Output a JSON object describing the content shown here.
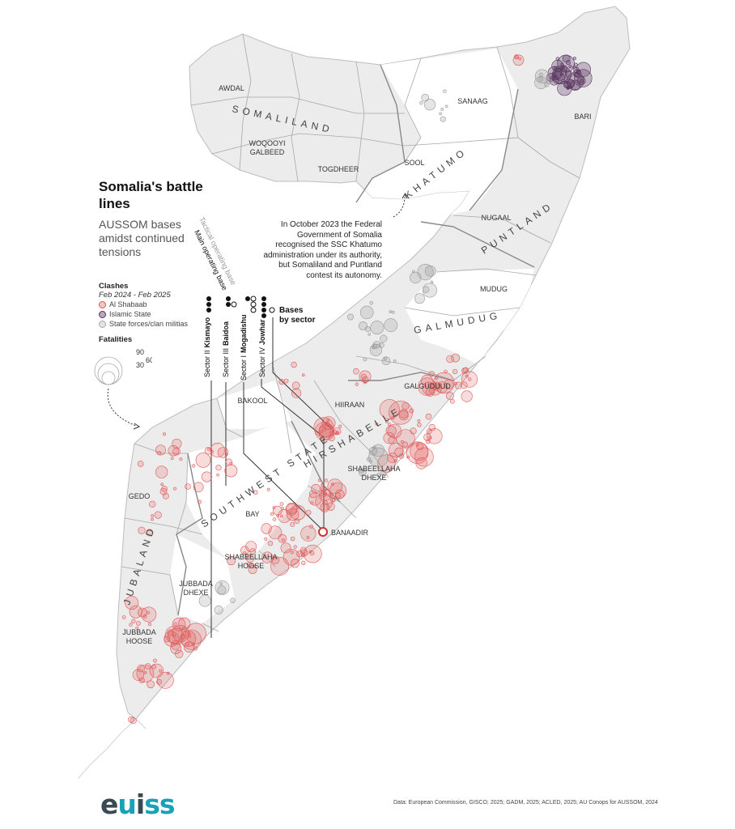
{
  "title": "Somalia's battle lines",
  "subtitle": "AUSSOM bases amidst continued tensions",
  "legend": {
    "clashes_heading": "Clashes",
    "period": "Feb 2024 - Feb 2025",
    "items": [
      {
        "label": "Al Shabaab",
        "color": "#e05a5a"
      },
      {
        "label": "Islamic State",
        "color": "#6b4a73"
      },
      {
        "label": "State forces/clan militias",
        "color": "#aaaaaa"
      }
    ],
    "fatalities_heading": "Fatalities",
    "fatality_values": [
      "90",
      "60",
      "30"
    ]
  },
  "base_types": {
    "tactical": "Tactical operating base",
    "main": "Main operating base",
    "bases_by_sector": "Bases by sector"
  },
  "sectors": [
    {
      "label": "Sector II",
      "city": "Kismayo",
      "main": 3,
      "tactical": 0
    },
    {
      "label": "Sector III",
      "city": "Baidoa",
      "main": 2,
      "tactical": 1
    },
    {
      "label": "Sector I",
      "city": "Mogadishu",
      "main": 1,
      "tactical": 3
    },
    {
      "label": "Sector IV",
      "city": "Jowhar",
      "main": 4,
      "tactical": 1
    }
  ],
  "annotation": "In October 2023 the Federal Government of Somalia recognised the SSC Khatumo administration under its authority, but Somaliland and Puntland contest its autonomy.",
  "states": [
    "SOMALILAND",
    "KHATUMO",
    "PUNTLAND",
    "GALMUDUG",
    "HIRSHABELLE",
    "SOUTHWEST STATE",
    "JUBALAND"
  ],
  "regions": [
    "AWDAL",
    "WOQOOYI GALBEED",
    "TOGDHEER",
    "SOOL",
    "SANAAG",
    "BARI",
    "NUGAAL",
    "MUDUG",
    "GALGUDUUD",
    "HIIRAAN",
    "BAKOOL",
    "SHABEELLAHA DHEXE",
    "BANAADIR",
    "BAY",
    "GEDO",
    "SHABEELLAHA HOOSE",
    "JUBBADA DHEXE",
    "JUBBADA HOOSE"
  ],
  "source": "Data: European Commission, GISCO; 2025; GADM, 2025; ACLED, 2025; AU Conops for AUSSOM, 2024",
  "logo": "euiss",
  "colors": {
    "al_shabaab": "#e05a5a",
    "islamic_state": "#5a3560",
    "state_forces": "#9a9a9a",
    "land": "#ececec",
    "land_alt": "#ffffff",
    "border": "#9a9a9a"
  }
}
